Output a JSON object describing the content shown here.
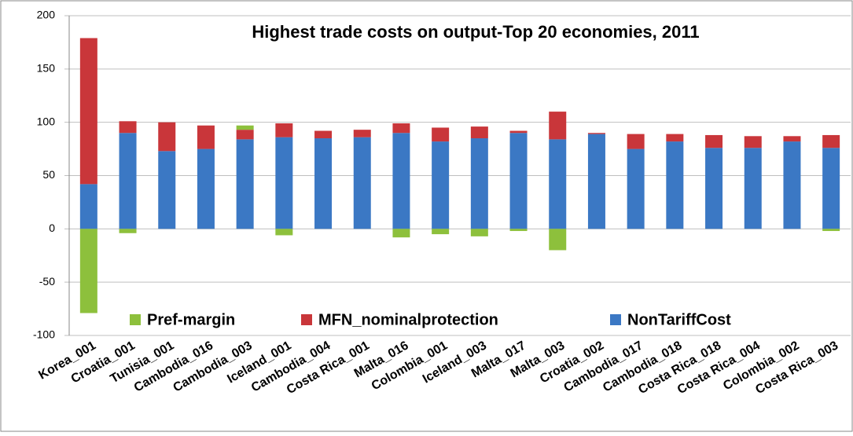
{
  "chart_data": {
    "type": "stacked_bar",
    "title": "Highest trade costs on output-Top 20 economies, 2011",
    "categories": [
      "Korea_001",
      "Croatia_001",
      "Tunisia_001",
      "Cambodia_016",
      "Cambodia_003",
      "Iceland_001",
      "Cambodia_004",
      "Costa Rica_001",
      "Malta_016",
      "Colombia_001",
      "Iceland_003",
      "Malta_017",
      "Malta_003",
      "Croatia_002",
      "Cambodia_017",
      "Cambodia_018",
      "Costa Rica_018",
      "Costa Rica_004",
      "Colombia_002",
      "Costa Rica_003"
    ],
    "series": [
      {
        "name": "Pref-margin",
        "color": "#8dc03c",
        "values": [
          -79,
          -4,
          0,
          0,
          4,
          -6,
          0,
          0,
          -8,
          -5,
          -7,
          -2,
          -20,
          0,
          0,
          0,
          0,
          0,
          0,
          -2
        ]
      },
      {
        "name": "MFN_nominalprotection",
        "color": "#c9363a",
        "values": [
          137,
          11,
          27,
          22,
          9,
          13,
          7,
          7,
          9,
          13,
          11,
          2,
          26,
          1,
          14,
          7,
          12,
          11,
          5,
          12
        ]
      },
      {
        "name": "NonTariffCost",
        "color": "#3b78c4",
        "values": [
          42,
          90,
          73,
          75,
          84,
          86,
          85,
          86,
          90,
          82,
          85,
          90,
          84,
          89,
          75,
          82,
          76,
          76,
          82,
          76
        ]
      }
    ],
    "ylim": [
      -100,
      200
    ],
    "yticks": [
      -100,
      -50,
      0,
      50,
      100,
      150,
      200
    ],
    "grid": true,
    "legend": "bottom"
  }
}
